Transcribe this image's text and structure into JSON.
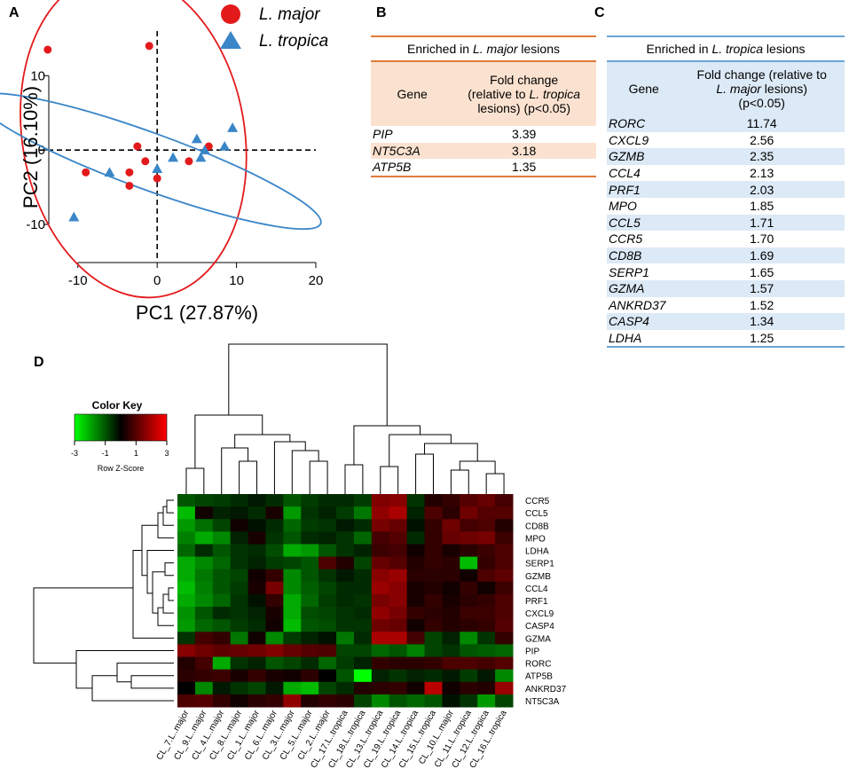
{
  "panels": {
    "a": "A",
    "b": "B",
    "c": "C",
    "d": "D"
  },
  "colors": {
    "major": "#e31a1c",
    "tropica": "#3a86c8",
    "orange": "#e07b3a",
    "blue": "#6aa6d6"
  },
  "chart_data": [
    {
      "type": "scatter",
      "xlabel": "PC1 (27.87%)",
      "ylabel": "PC2 (16.10%)",
      "xlim": [
        -14,
        20
      ],
      "ylim": [
        -15,
        16
      ],
      "xticks": [
        -10,
        0,
        10,
        20
      ],
      "yticks": [
        -10,
        0,
        10
      ],
      "xtick_labels": [
        "-10",
        "0",
        "10",
        "20"
      ],
      "ytick_labels": [
        "-10",
        "0",
        "10"
      ],
      "legend": {
        "placement": "top-right",
        "entries": [
          {
            "name": "L. major",
            "symbol": "circle"
          },
          {
            "name": "L. tropica",
            "symbol": "triangle"
          }
        ]
      },
      "series": [
        {
          "name": "L. major",
          "points": [
            [
              -13.8,
              13.5
            ],
            [
              -1,
              14
            ],
            [
              -2.5,
              0.5
            ],
            [
              -9,
              -3
            ],
            [
              -3.5,
              -3
            ],
            [
              -3.5,
              -4.8
            ],
            [
              -1.5,
              -1.5
            ],
            [
              0,
              -3.8
            ],
            [
              4,
              -1.5
            ],
            [
              6.5,
              0.5
            ]
          ]
        },
        {
          "name": "L. tropica",
          "points": [
            [
              -6,
              -3
            ],
            [
              -10.5,
              -9
            ],
            [
              0,
              -2.5
            ],
            [
              2,
              -1
            ],
            [
              5,
              1.5
            ],
            [
              5.5,
              -1
            ],
            [
              6,
              0
            ],
            [
              8.5,
              0.5
            ],
            [
              9.5,
              3
            ]
          ]
        }
      ],
      "ellipses": [
        {
          "name": "L. major",
          "center": [
            -3,
            2
          ],
          "rx": 14,
          "ry": 22,
          "rotation_deg": -10
        },
        {
          "name": "L. tropica",
          "center": [
            -1,
            -1.5
          ],
          "rx": 23,
          "ry": 3.8,
          "rotation_deg": 20
        }
      ]
    },
    {
      "type": "table",
      "title": "Enriched in L. major lesions",
      "title_prefix": "Enriched in ",
      "title_species": "L. major",
      "title_suffix": " lesions",
      "col_gene": "Gene",
      "col_fc_line1": "Fold change",
      "col_fc_line2_prefix": "(relative to ",
      "col_fc_line2_species": "L. tropica",
      "col_fc_line3": "lesions) (p<0.05)",
      "rows": [
        {
          "gene": "PIP",
          "fc": "3.39"
        },
        {
          "gene": "NT5C3A",
          "fc": "3.18"
        },
        {
          "gene": "ATP5B",
          "fc": "1.35"
        }
      ]
    },
    {
      "type": "table",
      "title": "Enriched in L. tropica lesions",
      "title_prefix": "Enriched in ",
      "title_species": "L. tropica",
      "title_suffix": " lesions",
      "col_gene": "Gene",
      "col_fc_line1": "Fold change (relative to",
      "col_fc_line2_species": "L. major",
      "col_fc_line2_suffix": " lesions)",
      "col_fc_line3": "(p<0.05)",
      "rows": [
        {
          "gene": "RORC",
          "fc": "11.74"
        },
        {
          "gene": "CXCL9",
          "fc": "2.56"
        },
        {
          "gene": "GZMB",
          "fc": "2.35"
        },
        {
          "gene": "CCL4",
          "fc": "2.13"
        },
        {
          "gene": "PRF1",
          "fc": "2.03"
        },
        {
          "gene": "MPO",
          "fc": "1.85"
        },
        {
          "gene": "CCL5",
          "fc": "1.71"
        },
        {
          "gene": "CCR5",
          "fc": "1.70"
        },
        {
          "gene": "CD8B",
          "fc": "1.69"
        },
        {
          "gene": "SERP1",
          "fc": "1.65"
        },
        {
          "gene": "GZMA",
          "fc": "1.57"
        },
        {
          "gene": "ANKRD37",
          "fc": "1.52"
        },
        {
          "gene": "CASP4",
          "fc": "1.34"
        },
        {
          "gene": "LDHA",
          "fc": "1.25"
        }
      ]
    },
    {
      "type": "heatmap",
      "color_key": {
        "title": "Color Key",
        "subtitle": "Row Z-Score",
        "ticks": [
          "-3",
          "-1",
          "1",
          "3"
        ],
        "range": [
          -3,
          3
        ],
        "low": "#00ff00",
        "mid": "#000000",
        "high": "#ff0000"
      },
      "rows": [
        "CCR5",
        "CCL5",
        "CD8B",
        "MPO",
        "LDHA",
        "SERP1",
        "GZMB",
        "CCL4",
        "PRF1",
        "CXCL9",
        "CASP4",
        "GZMA",
        "PIP",
        "RORC",
        "ATP5B",
        "ANKRD37",
        "NT5C3A"
      ],
      "columns": [
        "CL_7.L..major",
        "CL_9.L..major",
        "CL_4.L..major",
        "CL_8.L..major",
        "CL_1.L..major",
        "CL_6.L..major",
        "CL_3.L..major",
        "CL_5.L..major",
        "CL_2.L..major",
        "CL_17.L..tropica",
        "CL_18.L..tropica",
        "CL_13.L..tropica",
        "CL_19.L..tropica",
        "CL_14.L..tropica",
        "CL_15.L..tropica",
        "CL_10.L..major",
        "CL_11.L..tropica",
        "CL_12.L..tropica",
        "CL_16.L..tropica"
      ],
      "values": [
        [
          -1.0,
          -0.8,
          -0.7,
          -0.5,
          -0.3,
          -0.5,
          -1.0,
          -0.7,
          -0.5,
          -0.5,
          -0.7,
          1.5,
          1.6,
          -0.6,
          0.4,
          0.6,
          1.0,
          1.2,
          0.8
        ],
        [
          -2.2,
          0.2,
          -0.4,
          -0.3,
          -0.5,
          0.3,
          -1.8,
          -0.6,
          -0.4,
          -0.7,
          -1.4,
          1.7,
          2.0,
          -0.4,
          0.9,
          0.5,
          1.3,
          1.0,
          1.0
        ],
        [
          -1.8,
          -1.3,
          -0.8,
          0.2,
          -0.2,
          -0.5,
          -1.2,
          -0.7,
          -0.6,
          -0.3,
          -0.5,
          1.4,
          1.2,
          -0.2,
          0.6,
          1.3,
          0.8,
          0.9,
          0.4
        ],
        [
          -1.5,
          -2.0,
          -1.6,
          -0.4,
          0.3,
          -0.6,
          -1.0,
          -0.5,
          -0.4,
          -0.6,
          -1.2,
          0.8,
          1.0,
          -0.5,
          0.6,
          1.2,
          1.3,
          1.4,
          0.7
        ],
        [
          -1.2,
          -0.5,
          -1.0,
          -0.6,
          -0.5,
          -0.9,
          -2.0,
          -1.8,
          -1.0,
          -0.6,
          -0.4,
          0.7,
          0.8,
          0.2,
          0.6,
          0.3,
          0.5,
          0.7,
          0.9
        ],
        [
          -2.0,
          -1.6,
          -1.2,
          -0.6,
          -0.4,
          -0.7,
          -0.8,
          -1.0,
          0.9,
          0.4,
          -0.8,
          1.2,
          1.0,
          0.4,
          0.6,
          0.5,
          -2.2,
          0.6,
          0.9
        ],
        [
          -2.0,
          -1.4,
          -1.0,
          -0.8,
          0.2,
          0.6,
          -1.6,
          -1.0,
          -0.6,
          -0.3,
          -0.5,
          1.6,
          1.8,
          0.5,
          0.5,
          0.5,
          0.2,
          0.9,
          1.1
        ],
        [
          -2.2,
          -1.5,
          -1.0,
          -0.7,
          0.3,
          1.4,
          -1.6,
          -1.1,
          -0.8,
          -0.5,
          -0.5,
          1.8,
          1.6,
          0.3,
          0.4,
          0.2,
          0.6,
          0.2,
          0.7
        ],
        [
          -2.0,
          -1.6,
          -1.2,
          -0.6,
          -0.2,
          0.6,
          -2.0,
          -1.2,
          -0.7,
          -0.5,
          -0.6,
          1.4,
          1.6,
          0.3,
          0.6,
          0.3,
          0.5,
          0.6,
          0.9
        ],
        [
          -1.7,
          -1.0,
          -0.5,
          -0.6,
          -0.4,
          0.3,
          -2.0,
          -0.9,
          -0.8,
          -0.6,
          -0.5,
          1.7,
          1.4,
          0.6,
          0.5,
          0.4,
          0.7,
          0.7,
          0.9
        ],
        [
          -1.8,
          -1.2,
          -1.0,
          -0.7,
          -0.5,
          0.2,
          -2.2,
          -1.0,
          -0.9,
          -0.6,
          -0.6,
          1.3,
          1.2,
          0.2,
          0.6,
          0.4,
          0.5,
          0.6,
          1.0
        ],
        [
          -0.6,
          0.8,
          0.6,
          -1.4,
          0.2,
          -1.6,
          -0.7,
          -0.4,
          -0.2,
          -1.4,
          -0.5,
          2.0,
          2.0,
          0.8,
          -0.8,
          -0.4,
          -1.6,
          -0.6,
          0.6
        ],
        [
          1.6,
          1.3,
          1.1,
          1.2,
          1.3,
          1.5,
          1.2,
          1.0,
          0.9,
          -0.8,
          -0.8,
          -1.2,
          -1.0,
          -1.5,
          -0.8,
          -0.6,
          -1.0,
          -1.1,
          -1.2
        ],
        [
          0.4,
          0.8,
          -2.0,
          -0.6,
          -0.4,
          -1.0,
          -0.8,
          -0.5,
          -1.2,
          -0.7,
          -0.4,
          0.6,
          0.5,
          0.5,
          0.6,
          0.9,
          0.9,
          0.8,
          1.0
        ],
        [
          0.5,
          0.6,
          0.7,
          0.3,
          0.6,
          0.3,
          0.2,
          0.5,
          0.0,
          -1.0,
          -3.0,
          -0.4,
          -0.6,
          -0.4,
          -0.5,
          -0.3,
          -0.7,
          -0.3,
          -1.6
        ],
        [
          0.0,
          -1.6,
          -0.3,
          -0.6,
          -0.8,
          -0.3,
          -2.0,
          -2.2,
          -0.8,
          -0.5,
          0.4,
          0.5,
          0.6,
          0.2,
          2.2,
          0.2,
          0.5,
          0.4,
          1.8
        ],
        [
          0.9,
          1.0,
          0.6,
          0.2,
          0.5,
          0.6,
          1.7,
          0.4,
          0.6,
          0.5,
          -0.8,
          -1.6,
          -1.0,
          -1.2,
          -1.0,
          -0.2,
          -0.6,
          -1.8,
          -0.8
        ]
      ]
    }
  ]
}
